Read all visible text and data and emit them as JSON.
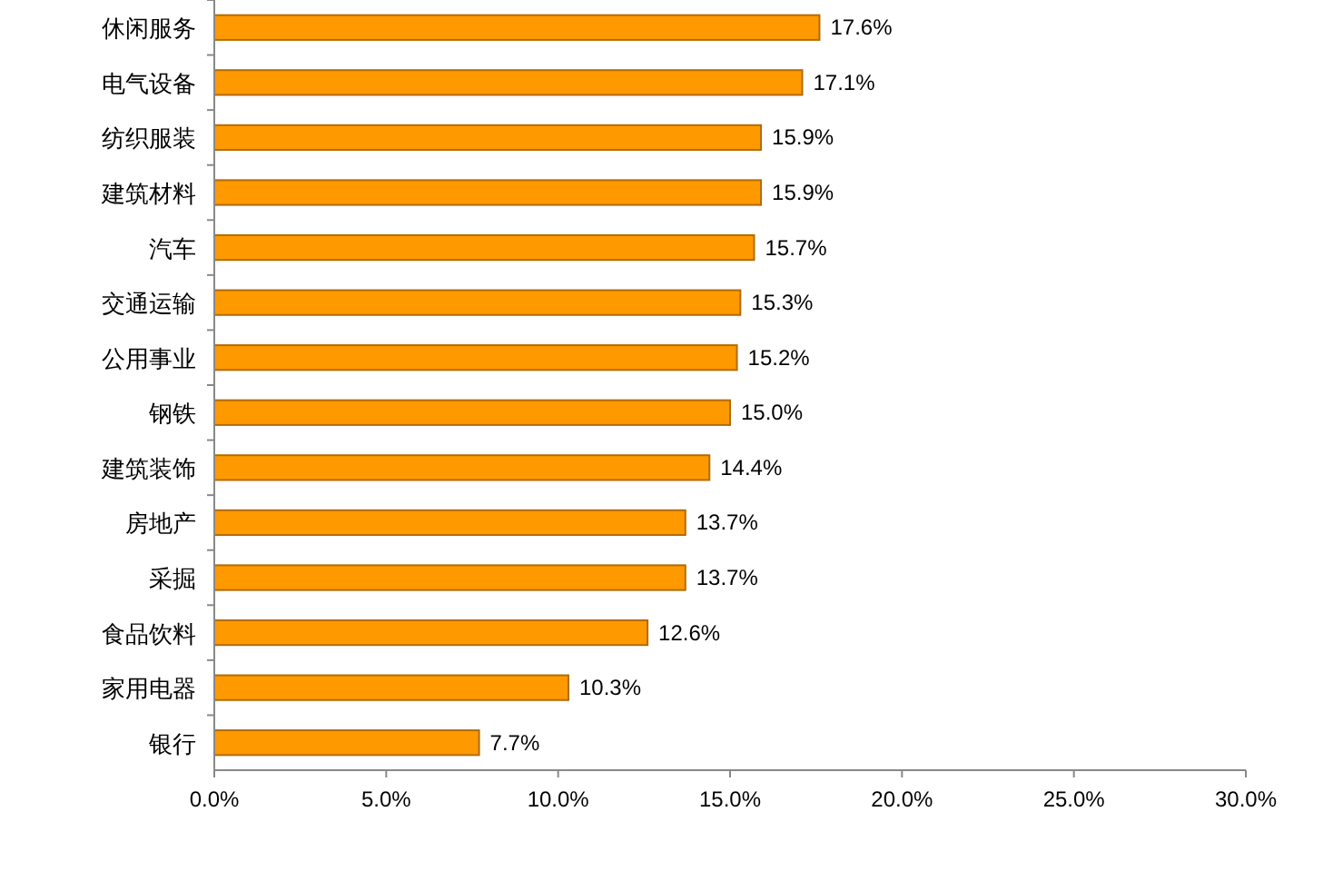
{
  "chart_data": {
    "type": "bar",
    "orientation": "horizontal",
    "categories": [
      "休闲服务",
      "电气设备",
      "纺织服装",
      "建筑材料",
      "汽车",
      "交通运输",
      "公用事业",
      "钢铁",
      "建筑装饰",
      "房地产",
      "采掘",
      "食品饮料",
      "家用电器",
      "银行"
    ],
    "values": [
      17.6,
      17.1,
      15.9,
      15.9,
      15.7,
      15.3,
      15.2,
      15.0,
      14.4,
      13.7,
      13.7,
      12.6,
      10.3,
      7.7
    ],
    "value_labels": [
      "17.6%",
      "17.1%",
      "15.9%",
      "15.9%",
      "15.7%",
      "15.3%",
      "15.2%",
      "15.0%",
      "14.4%",
      "13.7%",
      "13.7%",
      "12.6%",
      "10.3%",
      "7.7%"
    ],
    "color": "#ff9900",
    "xlim": [
      0,
      30
    ],
    "xticks": [
      {
        "value": 0,
        "label": "0.0%"
      },
      {
        "value": 5,
        "label": "5.0%"
      },
      {
        "value": 10,
        "label": "10.0%"
      },
      {
        "value": 15,
        "label": "15.0%"
      },
      {
        "value": 20,
        "label": "20.0%"
      },
      {
        "value": 25,
        "label": "25.0%"
      },
      {
        "value": 30,
        "label": "30.0%"
      }
    ]
  }
}
